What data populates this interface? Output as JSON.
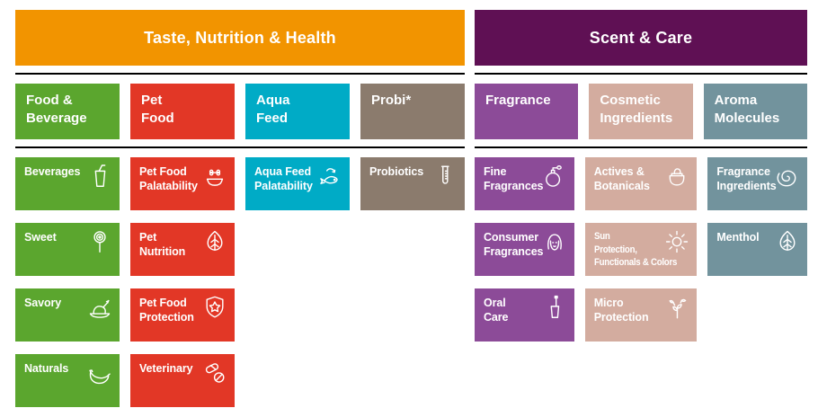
{
  "page": {
    "background": "#ffffff",
    "divider_color": "#000000",
    "text_color": "#ffffff"
  },
  "palette": {
    "orange": "#f29400",
    "dark_magenta": "#5f1054",
    "green": "#5ba62e",
    "red": "#e23726",
    "cyan": "#00abc6",
    "taupe": "#8b7b6d",
    "purple": "#8c4b98",
    "rose": "#d3ac9f",
    "slate": "#72939d"
  },
  "segments": [
    {
      "title": "Taste, Nutrition & Health",
      "color_key": "orange",
      "divisions": [
        {
          "label": "Food &\nBeverage",
          "color_key": "green"
        },
        {
          "label": "Pet\nFood",
          "color_key": "red"
        },
        {
          "label": "Aqua\nFeed",
          "color_key": "cyan"
        },
        {
          "label": "Probi*",
          "color_key": "taupe"
        }
      ],
      "categories": [
        {
          "label": "Beverages",
          "icon": "drink-glass-icon",
          "color_key": "green"
        },
        {
          "label": "Pet Food\nPalatability",
          "icon": "pet-bowl-bone-icon",
          "color_key": "red"
        },
        {
          "label": "Aqua Feed\nPalatability",
          "icon": "fish-icon",
          "color_key": "cyan"
        },
        {
          "label": "Probiotics",
          "icon": "test-tube-icon",
          "color_key": "taupe"
        },
        {
          "label": "Sweet",
          "icon": "lollipop-icon",
          "color_key": "green"
        },
        {
          "label": "Pet\nNutrition",
          "icon": "leaf-icon",
          "color_key": "red"
        },
        {
          "label": "Savory",
          "icon": "roast-dish-icon",
          "color_key": "green"
        },
        {
          "label": "Pet Food\nProtection",
          "icon": "shield-star-icon",
          "color_key": "red"
        },
        {
          "label": "Naturals",
          "icon": "banana-icon",
          "color_key": "green"
        },
        {
          "label": "Veterinary",
          "icon": "pills-icon",
          "color_key": "red"
        }
      ]
    },
    {
      "title": "Scent & Care",
      "color_key": "dark_magenta",
      "divisions": [
        {
          "label": "Fragrance",
          "color_key": "purple"
        },
        {
          "label": "Cosmetic\nIngredients",
          "color_key": "rose"
        },
        {
          "label": "Aroma\nMolecules",
          "color_key": "slate"
        }
      ],
      "categories": [
        {
          "label": "Fine\nFragrances",
          "icon": "perfume-bottle-icon",
          "color_key": "purple"
        },
        {
          "label": "Actives &\nBotanicals",
          "icon": "cream-jar-icon",
          "color_key": "rose"
        },
        {
          "label": "Fragrance\nIngredients",
          "icon": "rose-icon",
          "color_key": "slate"
        },
        {
          "label": "Consumer\nFragrances",
          "icon": "face-icon",
          "color_key": "purple"
        },
        {
          "label": "Sun\nProtection,\nFunctionals & Colors",
          "icon": "sun-icon",
          "color_key": "rose"
        },
        {
          "label": "Menthol",
          "icon": "mint-leaf-icon",
          "color_key": "slate"
        },
        {
          "label": "Oral\nCare",
          "icon": "toothbrush-cup-icon",
          "color_key": "purple"
        },
        {
          "label": "Micro\nProtection",
          "icon": "sprout-icon",
          "color_key": "rose"
        }
      ]
    }
  ]
}
